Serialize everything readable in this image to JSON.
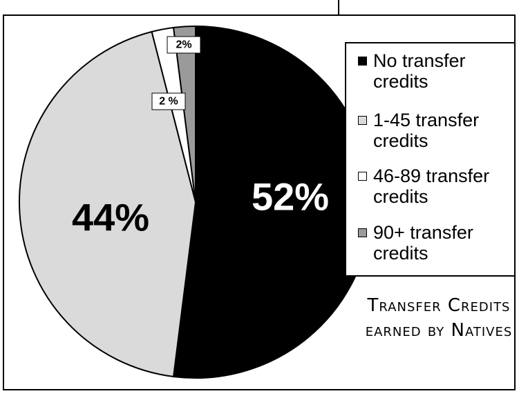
{
  "chart_data": {
    "type": "pie",
    "title": "Transfer Credits earned by Natives",
    "categories": [
      "No transfer credits",
      "1-45 transfer credits",
      "46-89 transfer credits",
      "90+ transfer credits"
    ],
    "values": [
      52,
      44,
      2,
      2
    ],
    "value_labels": [
      "52%",
      "44%",
      "2 %",
      "2%"
    ],
    "colors": [
      "#000000",
      "#dadada",
      "#ffffff",
      "#9a9a9a"
    ]
  }
}
